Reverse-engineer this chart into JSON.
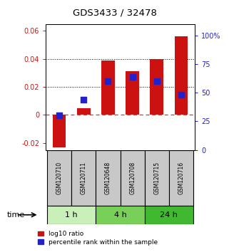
{
  "title": "GDS3433 / 32478",
  "samples": [
    "GSM120710",
    "GSM120711",
    "GSM120648",
    "GSM120708",
    "GSM120715",
    "GSM120716"
  ],
  "log10_ratio": [
    -0.023,
    0.005,
    0.039,
    0.031,
    0.04,
    0.056
  ],
  "percentile_rank": [
    0.3,
    0.44,
    0.6,
    0.64,
    0.6,
    0.48
  ],
  "time_groups": [
    {
      "label": "1 h",
      "samples": [
        0,
        1
      ],
      "color": "#c8f0b8"
    },
    {
      "label": "4 h",
      "samples": [
        2,
        3
      ],
      "color": "#78d058"
    },
    {
      "label": "24 h",
      "samples": [
        4,
        5
      ],
      "color": "#40b830"
    }
  ],
  "ylim_left": [
    -0.025,
    0.065
  ],
  "ylim_right": [
    0.0,
    1.1
  ],
  "yticks_left": [
    -0.02,
    0.0,
    0.02,
    0.04,
    0.06
  ],
  "ytick_labels_left": [
    "-0.02",
    "0",
    "0.02",
    "0.04",
    "0.06"
  ],
  "yticks_right": [
    0.0,
    0.25,
    0.5,
    0.75,
    1.0
  ],
  "ytick_labels_right": [
    "0",
    "25",
    "50",
    "75",
    "100%"
  ],
  "bar_color": "#cc1111",
  "dot_color": "#2222cc",
  "hline_color": "#cc2222",
  "dotted_lines": [
    0.02,
    0.04
  ],
  "xlabel": "time",
  "legend_red": "log10 ratio",
  "legend_blue": "percentile rank within the sample",
  "bar_width": 0.55,
  "figsize": [
    3.21,
    3.54
  ],
  "dpi": 100,
  "label_bg": "#c8c8c8"
}
